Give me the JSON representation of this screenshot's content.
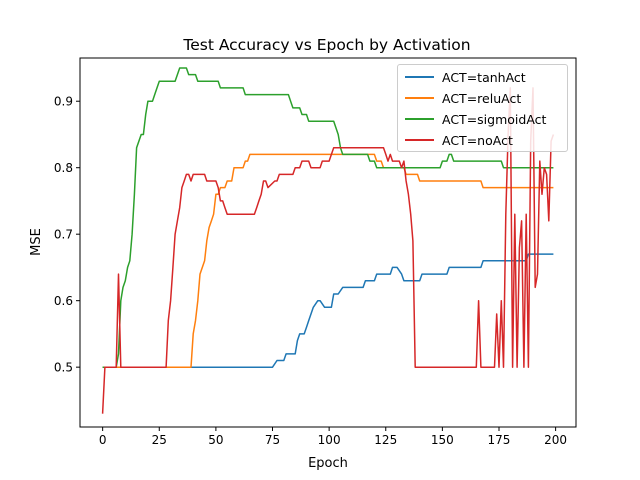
{
  "chart_data": {
    "type": "line",
    "title": "Test Accuracy vs Epoch by Activation",
    "xlabel": "Epoch",
    "ylabel": "MSE",
    "xlim": [
      -10,
      209
    ],
    "ylim": [
      0.41,
      0.965
    ],
    "xticks": [
      0,
      25,
      50,
      75,
      100,
      125,
      150,
      175,
      200
    ],
    "yticks": [
      0.5,
      0.6,
      0.7,
      0.8,
      0.9
    ],
    "ytick_labels": [
      "0.5",
      "0.6",
      "0.7",
      "0.8",
      "0.9"
    ],
    "grid": false,
    "legend": "top-right",
    "series": [
      {
        "name": "ACT=tanhAct",
        "color": "#1f77b4",
        "points": [
          [
            0,
            0.5
          ],
          [
            74,
            0.5
          ],
          [
            75,
            0.5
          ],
          [
            77,
            0.51
          ],
          [
            80,
            0.51
          ],
          [
            81,
            0.52
          ],
          [
            85,
            0.52
          ],
          [
            86,
            0.54
          ],
          [
            87,
            0.55
          ],
          [
            88,
            0.55
          ],
          [
            89,
            0.55
          ],
          [
            90,
            0.56
          ],
          [
            91,
            0.57
          ],
          [
            93,
            0.59
          ],
          [
            95,
            0.6
          ],
          [
            96,
            0.6
          ],
          [
            98,
            0.59
          ],
          [
            101,
            0.59
          ],
          [
            102,
            0.61
          ],
          [
            104,
            0.61
          ],
          [
            106,
            0.62
          ],
          [
            115,
            0.62
          ],
          [
            116,
            0.63
          ],
          [
            120,
            0.63
          ],
          [
            121,
            0.64
          ],
          [
            127,
            0.64
          ],
          [
            128,
            0.65
          ],
          [
            130,
            0.65
          ],
          [
            132,
            0.64
          ],
          [
            133,
            0.63
          ],
          [
            140,
            0.63
          ],
          [
            141,
            0.64
          ],
          [
            152,
            0.64
          ],
          [
            153,
            0.65
          ],
          [
            167,
            0.65
          ],
          [
            168,
            0.66
          ],
          [
            187,
            0.66
          ],
          [
            188,
            0.67
          ],
          [
            199,
            0.67
          ]
        ]
      },
      {
        "name": "ACT=reluAct",
        "color": "#ff7f0e",
        "points": [
          [
            0,
            0.5
          ],
          [
            38,
            0.5
          ],
          [
            39,
            0.5
          ],
          [
            40,
            0.55
          ],
          [
            41,
            0.57
          ],
          [
            42,
            0.6
          ],
          [
            43,
            0.64
          ],
          [
            45,
            0.66
          ],
          [
            46,
            0.69
          ],
          [
            47,
            0.71
          ],
          [
            48,
            0.72
          ],
          [
            49,
            0.73
          ],
          [
            50,
            0.76
          ],
          [
            51,
            0.76
          ],
          [
            52,
            0.77
          ],
          [
            53,
            0.77
          ],
          [
            54,
            0.77
          ],
          [
            55,
            0.78
          ],
          [
            57,
            0.78
          ],
          [
            58,
            0.8
          ],
          [
            59,
            0.8
          ],
          [
            62,
            0.8
          ],
          [
            63,
            0.81
          ],
          [
            64,
            0.81
          ],
          [
            65,
            0.82
          ],
          [
            68,
            0.82
          ],
          [
            69,
            0.82
          ],
          [
            118,
            0.82
          ],
          [
            120,
            0.82
          ],
          [
            121,
            0.81
          ],
          [
            123,
            0.81
          ],
          [
            124,
            0.8
          ],
          [
            133,
            0.8
          ],
          [
            134,
            0.79
          ],
          [
            136,
            0.79
          ],
          [
            137,
            0.79
          ],
          [
            139,
            0.79
          ],
          [
            140,
            0.78
          ],
          [
            167,
            0.78
          ],
          [
            168,
            0.77
          ],
          [
            199,
            0.77
          ]
        ]
      },
      {
        "name": "ACT=sigmoidAct",
        "color": "#2ca02c",
        "points": [
          [
            0,
            0.5
          ],
          [
            6,
            0.5
          ],
          [
            7,
            0.52
          ],
          [
            8,
            0.6
          ],
          [
            9,
            0.62
          ],
          [
            10,
            0.63
          ],
          [
            11,
            0.65
          ],
          [
            12,
            0.66
          ],
          [
            13,
            0.7
          ],
          [
            14,
            0.76
          ],
          [
            15,
            0.83
          ],
          [
            16,
            0.84
          ],
          [
            17,
            0.85
          ],
          [
            18,
            0.85
          ],
          [
            19,
            0.88
          ],
          [
            20,
            0.9
          ],
          [
            21,
            0.9
          ],
          [
            22,
            0.9
          ],
          [
            23,
            0.91
          ],
          [
            24,
            0.92
          ],
          [
            25,
            0.93
          ],
          [
            32,
            0.93
          ],
          [
            33,
            0.94
          ],
          [
            34,
            0.95
          ],
          [
            37,
            0.95
          ],
          [
            38,
            0.94
          ],
          [
            41,
            0.94
          ],
          [
            42,
            0.93
          ],
          [
            51,
            0.93
          ],
          [
            52,
            0.92
          ],
          [
            62,
            0.92
          ],
          [
            63,
            0.91
          ],
          [
            66,
            0.91
          ],
          [
            67,
            0.91
          ],
          [
            82,
            0.91
          ],
          [
            83,
            0.9
          ],
          [
            84,
            0.89
          ],
          [
            85,
            0.89
          ],
          [
            87,
            0.89
          ],
          [
            88,
            0.88
          ],
          [
            90,
            0.88
          ],
          [
            91,
            0.87
          ],
          [
            101,
            0.87
          ],
          [
            102,
            0.87
          ],
          [
            104,
            0.85
          ],
          [
            105,
            0.83
          ],
          [
            106,
            0.82
          ],
          [
            117,
            0.82
          ],
          [
            118,
            0.81
          ],
          [
            120,
            0.81
          ],
          [
            121,
            0.8
          ],
          [
            149,
            0.8
          ],
          [
            150,
            0.81
          ],
          [
            152,
            0.81
          ],
          [
            153,
            0.82
          ],
          [
            154,
            0.82
          ],
          [
            155,
            0.81
          ],
          [
            176,
            0.81
          ],
          [
            177,
            0.8
          ],
          [
            199,
            0.8
          ]
        ]
      },
      {
        "name": "ACT=noAct",
        "color": "#d62728",
        "points": [
          [
            0,
            0.43
          ],
          [
            1,
            0.5
          ],
          [
            6,
            0.5
          ],
          [
            7,
            0.64
          ],
          [
            8,
            0.5
          ],
          [
            28,
            0.5
          ],
          [
            29,
            0.57
          ],
          [
            30,
            0.6
          ],
          [
            31,
            0.65
          ],
          [
            32,
            0.7
          ],
          [
            33,
            0.72
          ],
          [
            34,
            0.74
          ],
          [
            35,
            0.77
          ],
          [
            36,
            0.78
          ],
          [
            37,
            0.79
          ],
          [
            38,
            0.79
          ],
          [
            39,
            0.78
          ],
          [
            40,
            0.79
          ],
          [
            45,
            0.79
          ],
          [
            46,
            0.78
          ],
          [
            50,
            0.78
          ],
          [
            51,
            0.77
          ],
          [
            52,
            0.75
          ],
          [
            53,
            0.75
          ],
          [
            54,
            0.74
          ],
          [
            55,
            0.73
          ],
          [
            67,
            0.73
          ],
          [
            68,
            0.74
          ],
          [
            69,
            0.75
          ],
          [
            70,
            0.76
          ],
          [
            71,
            0.78
          ],
          [
            72,
            0.78
          ],
          [
            73,
            0.77
          ],
          [
            76,
            0.78
          ],
          [
            77,
            0.78
          ],
          [
            78,
            0.79
          ],
          [
            84,
            0.79
          ],
          [
            85,
            0.8
          ],
          [
            87,
            0.8
          ],
          [
            88,
            0.81
          ],
          [
            89,
            0.81
          ],
          [
            91,
            0.81
          ],
          [
            92,
            0.8
          ],
          [
            96,
            0.8
          ],
          [
            97,
            0.81
          ],
          [
            100,
            0.81
          ],
          [
            101,
            0.82
          ],
          [
            102,
            0.83
          ],
          [
            124,
            0.83
          ],
          [
            125,
            0.82
          ],
          [
            126,
            0.81
          ],
          [
            127,
            0.82
          ],
          [
            128,
            0.81
          ],
          [
            131,
            0.81
          ],
          [
            132,
            0.8
          ],
          [
            133,
            0.81
          ],
          [
            134,
            0.78
          ],
          [
            135,
            0.76
          ],
          [
            136,
            0.73
          ],
          [
            137,
            0.69
          ],
          [
            138,
            0.5
          ],
          [
            139,
            0.5
          ],
          [
            165,
            0.5
          ],
          [
            166,
            0.6
          ],
          [
            167,
            0.5
          ],
          [
            173,
            0.5
          ],
          [
            174,
            0.58
          ],
          [
            175,
            0.5
          ],
          [
            176,
            0.6
          ],
          [
            177,
            0.5
          ],
          [
            178,
            0.73
          ],
          [
            179,
            0.85
          ],
          [
            180,
            0.92
          ],
          [
            181,
            0.5
          ],
          [
            182,
            0.73
          ],
          [
            183,
            0.5
          ],
          [
            184,
            0.68
          ],
          [
            185,
            0.72
          ],
          [
            186,
            0.5
          ],
          [
            187,
            0.73
          ],
          [
            188,
            0.5
          ],
          [
            189,
            0.84
          ],
          [
            190,
            0.92
          ],
          [
            191,
            0.62
          ],
          [
            192,
            0.64
          ],
          [
            193,
            0.81
          ],
          [
            194,
            0.76
          ],
          [
            195,
            0.8
          ],
          [
            196,
            0.79
          ],
          [
            197,
            0.72
          ],
          [
            198,
            0.84
          ],
          [
            199,
            0.85
          ]
        ]
      }
    ]
  }
}
